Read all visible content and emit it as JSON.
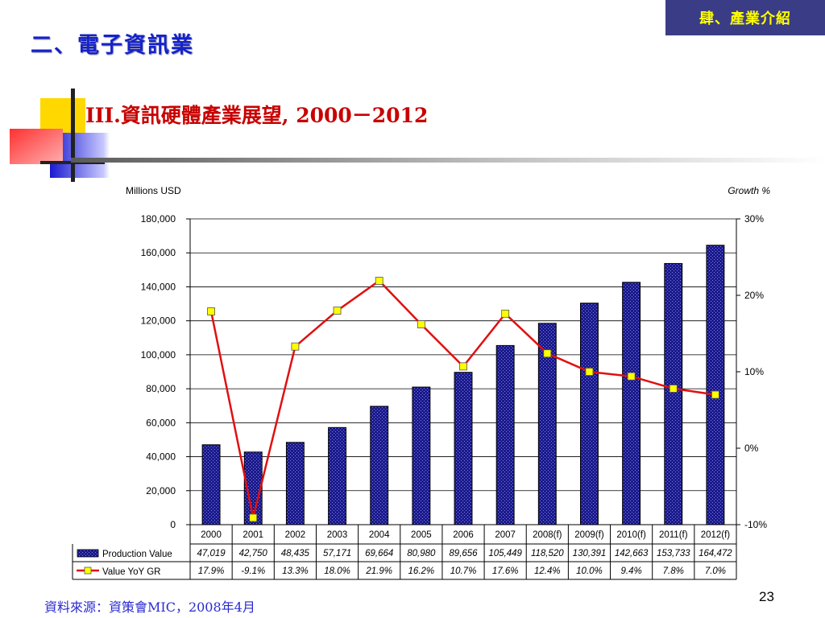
{
  "header": {
    "section_label": "肆、產業介紹",
    "main_title": "二、電子資訊業",
    "sub_title": "III.資訊硬體產業展望, 2000－2012"
  },
  "footer": {
    "source": "資料來源：資策會MIC，2008年4月",
    "page_number": "23"
  },
  "chart_data": {
    "type": "bar",
    "categories": [
      "2000",
      "2001",
      "2002",
      "2003",
      "2004",
      "2005",
      "2006",
      "2007",
      "2008(f)",
      "2009(f)",
      "2010(f)",
      "2011(f)",
      "2012(f)"
    ],
    "ylabel": "Millions USD",
    "y2label": "Growth %",
    "ylim": [
      0,
      180000
    ],
    "y2lim": [
      -10,
      30
    ],
    "y_ticks": [
      "0",
      "20,000",
      "40,000",
      "60,000",
      "80,000",
      "100,000",
      "120,000",
      "140,000",
      "160,000",
      "180,000"
    ],
    "y2_ticks": [
      "-10%",
      "0%",
      "10%",
      "20%",
      "30%"
    ],
    "grid": true,
    "series": [
      {
        "name": "Production Value",
        "type": "bar",
        "color": "#1a1a8c",
        "values": [
          47019,
          42750,
          48435,
          57171,
          69664,
          80980,
          89656,
          105449,
          118520,
          130391,
          142663,
          153733,
          164472
        ],
        "labels": [
          "47,019",
          "42,750",
          "48,435",
          "57,171",
          "69,664",
          "80,980",
          "89,656",
          "105,449",
          "118,520",
          "130,391",
          "142,663",
          "153,733",
          "164,472"
        ]
      },
      {
        "name": "Value YoY GR",
        "type": "line",
        "axis": "secondary",
        "color": "#e01010",
        "marker_color": "#ffff00",
        "values": [
          17.9,
          -9.1,
          13.3,
          18.0,
          21.9,
          16.2,
          10.7,
          17.6,
          12.4,
          10.0,
          9.4,
          7.8,
          7.0
        ],
        "labels": [
          "17.9%",
          "-9.1%",
          "13.3%",
          "18.0%",
          "21.9%",
          "16.2%",
          "10.7%",
          "17.6%",
          "12.4%",
          "10.0%",
          "9.4%",
          "7.8%",
          "7.0%"
        ]
      }
    ]
  }
}
